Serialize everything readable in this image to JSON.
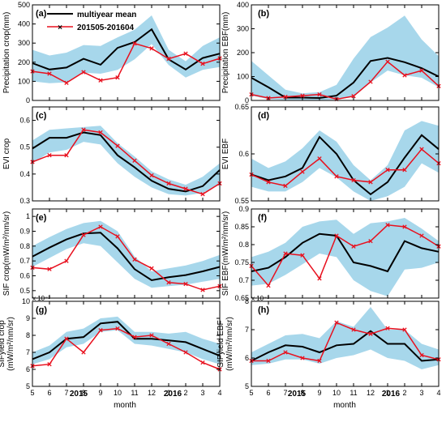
{
  "colors": {
    "band": "#a7d7eb",
    "mean": "#000000",
    "obs": "#e8101e"
  },
  "legend": {
    "mean_label": "multiyear mean",
    "obs_label": "201505-201604"
  },
  "x_axis": {
    "tick_labels": [
      "5",
      "6",
      "7",
      "8",
      "9",
      "10",
      "11",
      "12",
      "1",
      "2",
      "3",
      "4"
    ],
    "year_labels": [
      "2015",
      "2016"
    ],
    "xlabel": "month"
  },
  "chart_data": [
    {
      "type": "line",
      "panel": "(a)",
      "ylabel": "Precipitation crop(mm)",
      "ylim": [
        0,
        500
      ],
      "yticks": [
        0,
        100,
        200,
        300,
        400,
        500
      ],
      "exponent_label": "",
      "series": [
        {
          "name": "multiyear mean",
          "values": [
            195,
            162,
            172,
            218,
            187,
            275,
            305,
            372,
            215,
            162,
            222,
            245
          ]
        },
        {
          "name": "201505-201604",
          "values": [
            152,
            140,
            92,
            148,
            105,
            120,
            298,
            272,
            218,
            245,
            192,
            220
          ]
        }
      ],
      "band_lower": [
        100,
        90,
        95,
        145,
        140,
        160,
        215,
        295,
        185,
        120,
        160,
        175
      ],
      "band_upper": [
        265,
        235,
        250,
        290,
        285,
        330,
        370,
        445,
        265,
        205,
        285,
        330
      ]
    },
    {
      "type": "line",
      "panel": "(b)",
      "ylabel": "Precipitation EBF(mm)",
      "ylim": [
        0,
        400
      ],
      "yticks": [
        0,
        100,
        200,
        300,
        400
      ],
      "exponent_label": "",
      "series": [
        {
          "name": "multiyear mean",
          "values": [
            95,
            55,
            12,
            12,
            10,
            20,
            75,
            165,
            178,
            160,
            135,
            100
          ]
        },
        {
          "name": "201505-201604",
          "values": [
            25,
            10,
            15,
            20,
            25,
            5,
            18,
            78,
            162,
            105,
            125,
            60
          ]
        }
      ],
      "band_lower": [
        20,
        5,
        2,
        2,
        2,
        3,
        15,
        75,
        125,
        105,
        95,
        55
      ],
      "band_upper": [
        165,
        105,
        45,
        30,
        35,
        65,
        175,
        265,
        305,
        355,
        255,
        185
      ]
    },
    {
      "type": "line",
      "panel": "(c)",
      "ylabel": "EVI crop",
      "ylim": [
        0.3,
        0.65
      ],
      "yticks": [
        0.3,
        0.4,
        0.5,
        0.6
      ],
      "exponent_label": "",
      "series": [
        {
          "name": "multiyear mean",
          "values": [
            0.495,
            0.535,
            0.535,
            0.555,
            0.545,
            0.47,
            0.425,
            0.375,
            0.345,
            0.335,
            0.355,
            0.415
          ]
        },
        {
          "name": "201505-201604",
          "values": [
            0.445,
            0.47,
            0.47,
            0.565,
            0.555,
            0.505,
            0.45,
            0.395,
            0.365,
            0.345,
            0.325,
            0.365
          ]
        }
      ],
      "band_lower": [
        0.44,
        0.48,
        0.49,
        0.52,
        0.51,
        0.44,
        0.39,
        0.35,
        0.325,
        0.32,
        0.33,
        0.36
      ],
      "band_upper": [
        0.525,
        0.565,
        0.57,
        0.575,
        0.58,
        0.515,
        0.465,
        0.41,
        0.38,
        0.36,
        0.39,
        0.44
      ]
    },
    {
      "type": "line",
      "panel": "(d)",
      "ylabel": "EVI EBF",
      "ylim": [
        0.55,
        0.65
      ],
      "yticks": [
        0.55,
        0.6,
        0.65
      ],
      "exponent_label": "",
      "series": [
        {
          "name": "multiyear mean",
          "values": [
            0.578,
            0.572,
            0.576,
            0.585,
            0.618,
            0.6,
            0.572,
            0.557,
            0.57,
            0.596,
            0.62,
            0.605
          ]
        },
        {
          "name": "201505-201604",
          "values": [
            0.578,
            0.57,
            0.566,
            0.581,
            0.595,
            0.576,
            0.572,
            0.57,
            0.583,
            0.583,
            0.605,
            0.59
          ]
        }
      ],
      "band_lower": [
        0.565,
        0.56,
        0.56,
        0.57,
        0.585,
        0.575,
        0.56,
        0.55,
        0.555,
        0.565,
        0.59,
        0.58
      ],
      "band_upper": [
        0.595,
        0.585,
        0.592,
        0.606,
        0.625,
        0.613,
        0.588,
        0.572,
        0.588,
        0.625,
        0.635,
        0.63
      ]
    },
    {
      "type": "line",
      "panel": "(e)",
      "ylabel": "SIF crop(mW/m²/nm/sr)",
      "ylim": [
        0.45,
        1.05
      ],
      "yticks": [
        0.5,
        0.6,
        0.7,
        0.8,
        0.9,
        1
      ],
      "exponent_label": "",
      "series": [
        {
          "name": "multiyear mean",
          "values": [
            0.73,
            0.79,
            0.845,
            0.885,
            0.89,
            0.785,
            0.645,
            0.57,
            0.59,
            0.605,
            0.63,
            0.66
          ]
        },
        {
          "name": "201505-201604",
          "values": [
            0.655,
            0.645,
            0.7,
            0.875,
            0.93,
            0.865,
            0.71,
            0.65,
            0.555,
            0.545,
            0.505,
            0.53
          ]
        }
      ],
      "band_lower": [
        0.66,
        0.72,
        0.78,
        0.82,
        0.8,
        0.69,
        0.58,
        0.52,
        0.53,
        0.54,
        0.56,
        0.58
      ],
      "band_upper": [
        0.8,
        0.86,
        0.915,
        0.955,
        0.97,
        0.9,
        0.73,
        0.63,
        0.65,
        0.67,
        0.7,
        0.74
      ]
    },
    {
      "type": "line",
      "panel": "(f)",
      "ylabel": "SIF EBF(mW/m²/nm/sr)",
      "ylim": [
        0.65,
        0.9
      ],
      "yticks": [
        0.65,
        0.7,
        0.75,
        0.8,
        0.85,
        0.9
      ],
      "exponent_label": "",
      "series": [
        {
          "name": "multiyear mean",
          "values": [
            0.725,
            0.735,
            0.765,
            0.805,
            0.83,
            0.825,
            0.75,
            0.74,
            0.725,
            0.81,
            0.79,
            0.78
          ]
        },
        {
          "name": "201505-201604",
          "values": [
            0.74,
            0.685,
            0.775,
            0.77,
            0.705,
            0.825,
            0.795,
            0.81,
            0.855,
            0.85,
            0.825,
            0.795
          ]
        }
      ],
      "band_lower": [
        0.685,
        0.69,
        0.715,
        0.745,
        0.775,
        0.765,
        0.7,
        0.67,
        0.655,
        0.73,
        0.735,
        0.75
      ],
      "band_upper": [
        0.765,
        0.78,
        0.805,
        0.85,
        0.865,
        0.87,
        0.83,
        0.86,
        0.865,
        0.875,
        0.845,
        0.81
      ]
    },
    {
      "type": "line",
      "panel": "(g)",
      "ylabel": "SIFyield crop\n(mW/m²/nm/sr)",
      "ylim": [
        5,
        10
      ],
      "yticks": [
        5,
        6,
        7,
        8,
        9,
        10
      ],
      "exponent_label": "x 10⁻³",
      "series": [
        {
          "name": "multiyear mean",
          "values": [
            6.6,
            7.0,
            7.8,
            7.9,
            8.7,
            8.8,
            7.8,
            7.8,
            7.7,
            7.6,
            7.2,
            6.8
          ]
        },
        {
          "name": "201505-201604",
          "values": [
            6.2,
            6.3,
            7.8,
            7.0,
            8.3,
            8.4,
            7.9,
            8.0,
            7.5,
            7.0,
            6.4,
            6.0
          ]
        }
      ],
      "band_lower": [
        6.3,
        6.6,
        7.3,
        7.5,
        8.2,
        8.3,
        7.5,
        7.4,
        7.2,
        7.0,
        6.6,
        6.3
      ],
      "band_upper": [
        7.0,
        7.4,
        8.2,
        8.4,
        9.0,
        9.1,
        8.2,
        8.2,
        8.1,
        8.2,
        7.8,
        7.5
      ]
    },
    {
      "type": "line",
      "panel": "(h)",
      "ylabel": "SIFyield EBF\n(mW/m²/nm/sr)",
      "ylim": [
        5,
        8
      ],
      "yticks": [
        5,
        6,
        7,
        8
      ],
      "exponent_label": "x 10⁻³",
      "series": [
        {
          "name": "multiyear mean",
          "values": [
            5.9,
            6.2,
            6.45,
            6.4,
            6.2,
            6.45,
            6.5,
            6.95,
            6.5,
            6.5,
            5.9,
            5.95
          ]
        },
        {
          "name": "201505-201604",
          "values": [
            5.9,
            5.9,
            6.2,
            6.0,
            5.9,
            7.25,
            7.0,
            6.85,
            7.05,
            7.0,
            6.1,
            5.95
          ]
        }
      ],
      "band_lower": [
        5.75,
        5.8,
        5.95,
        5.95,
        5.8,
        6.0,
        6.1,
        6.3,
        6.0,
        5.9,
        5.6,
        5.75
      ],
      "band_upper": [
        6.2,
        6.5,
        6.8,
        6.85,
        6.7,
        7.3,
        7.1,
        7.8,
        7.0,
        7.0,
        6.5,
        6.3
      ]
    }
  ]
}
